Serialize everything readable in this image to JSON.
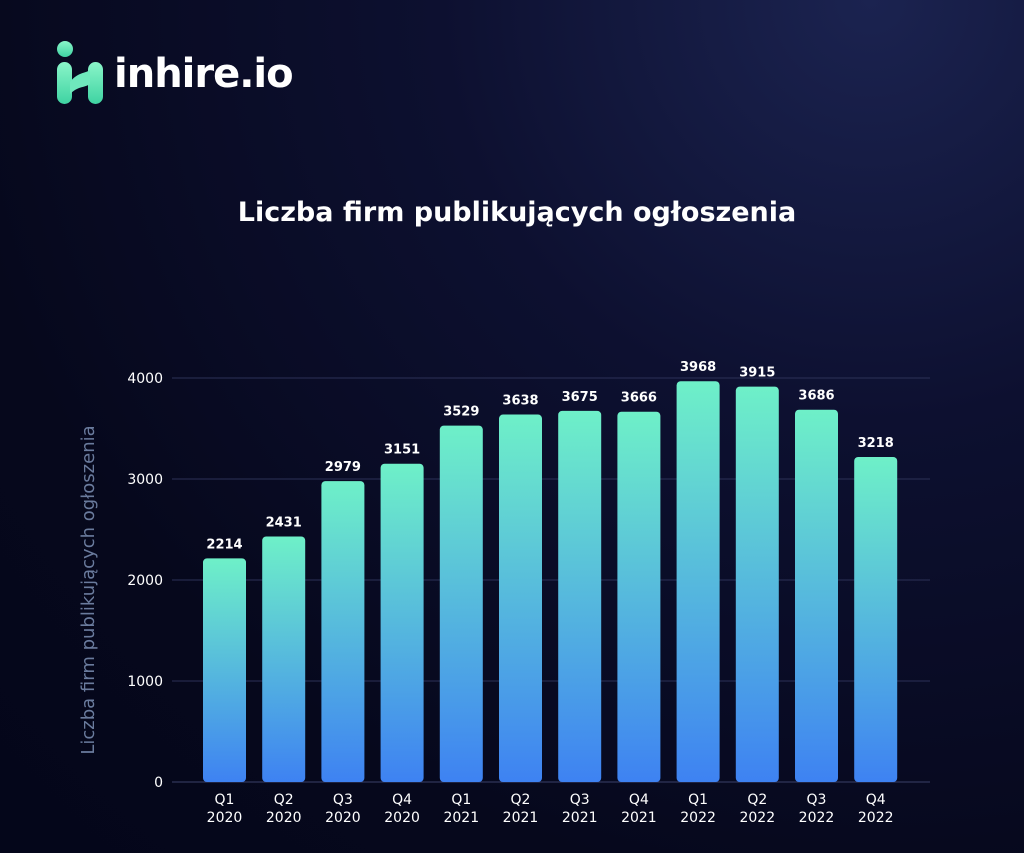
{
  "brand": {
    "name": "inhire.io"
  },
  "colors": {
    "bar_top": "#6ef0c8",
    "bar_bottom": "#3e82f2",
    "grid": "#2c3157",
    "axis_title": "#6a7b9d"
  },
  "chart_data": {
    "type": "bar",
    "title": "Liczba firm publikujących ogłoszenia",
    "ylabel": "Liczba  firm publikujących ogłoszenia",
    "xlabel": "",
    "categories": [
      "Q1 2020",
      "Q2 2020",
      "Q3 2020",
      "Q4 2020",
      "Q1 2021",
      "Q2 2021",
      "Q3 2021",
      "Q4 2021",
      "Q1 2022",
      "Q2 2022",
      "Q3 2022",
      "Q4 2022"
    ],
    "category_lines": [
      [
        "Q1",
        "2020"
      ],
      [
        "Q2",
        "2020"
      ],
      [
        "Q3",
        "2020"
      ],
      [
        "Q4",
        "2020"
      ],
      [
        "Q1",
        "2021"
      ],
      [
        "Q2",
        "2021"
      ],
      [
        "Q3",
        "2021"
      ],
      [
        "Q4",
        "2021"
      ],
      [
        "Q1",
        "2022"
      ],
      [
        "Q2",
        "2022"
      ],
      [
        "Q3",
        "2022"
      ],
      [
        "Q4",
        "2022"
      ]
    ],
    "values": [
      2214,
      2431,
      2979,
      3151,
      3529,
      3638,
      3675,
      3666,
      3968,
      3915,
      3686,
      3218
    ],
    "yticks": [
      0,
      1000,
      2000,
      3000,
      4000
    ],
    "ylim": [
      0,
      4000
    ],
    "grid": true,
    "data_labels": true
  }
}
